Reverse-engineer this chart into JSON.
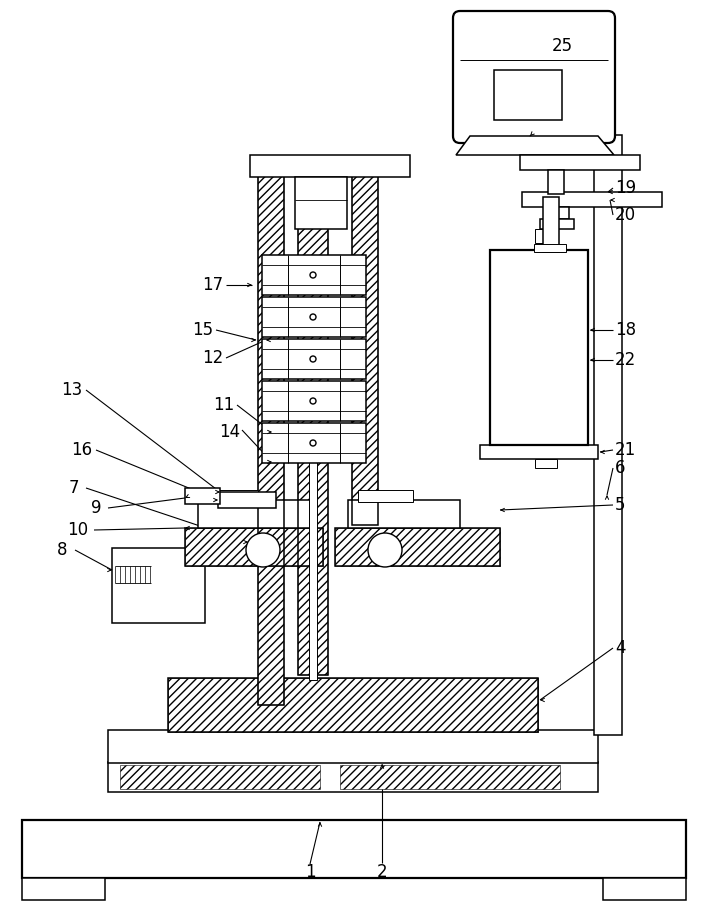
{
  "bg_color": "#ffffff",
  "figsize": [
    7.08,
    9.05
  ],
  "dpi": 100,
  "label_fs": 12
}
